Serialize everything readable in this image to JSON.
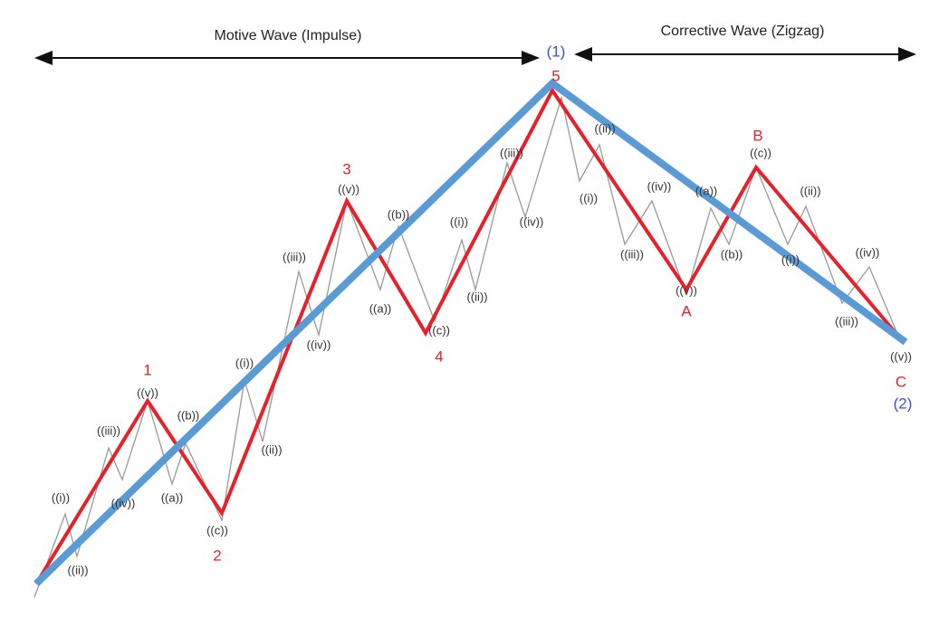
{
  "headers": {
    "motive": "Motive Wave (Impulse)",
    "corrective": "Corrective Wave (Zigzag)"
  },
  "primary_labels": [
    "(1)",
    "(2)"
  ],
  "wave_labels": [
    "1",
    "2",
    "3",
    "4",
    "5",
    "A",
    "B",
    "C"
  ],
  "sub_labels": [
    "((i))",
    "((ii))",
    "((iii))",
    "((iv))",
    "((v))",
    "((a))",
    "((b))",
    "((c))",
    "((i))",
    "((ii))",
    "((iii))",
    "((iv))",
    "((v))",
    "((a))",
    "((b))",
    "((c))",
    "((i))",
    "((ii))",
    "((iii))",
    "((iv))",
    "((ii))",
    "((i))",
    "((iii))",
    "((iv))",
    "((v))",
    "((a))",
    "((b))",
    "((c))",
    "((ii))",
    "((i))",
    "((iii))",
    "((iv))",
    "((v))"
  ]
}
